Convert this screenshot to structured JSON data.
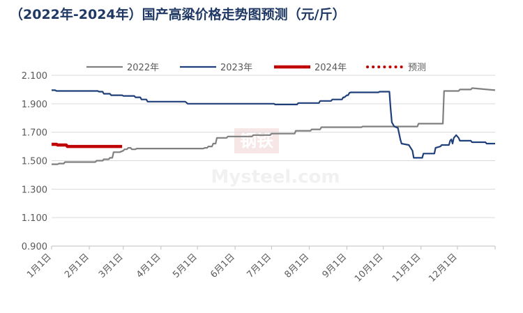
{
  "chart_data": {
    "type": "line",
    "title": "（2022年-2024年）国产高粱价格走势图预测（元/斤）",
    "watermark": {
      "cn": "钢铁",
      "en": "Mysteel.com"
    },
    "ylim": [
      0.9,
      2.1
    ],
    "yticks": [
      "0.900",
      "1.100",
      "1.300",
      "1.500",
      "1.700",
      "1.900",
      "2.100"
    ],
    "ytick_values": [
      0.9,
      1.1,
      1.3,
      1.5,
      1.7,
      1.9,
      2.1
    ],
    "xticks": [
      "1月1日",
      "2月1日",
      "3月1日",
      "4月1日",
      "5月1日",
      "6月1日",
      "7月1日",
      "8月1日",
      "9月1日",
      "10月1日",
      "11月1日",
      "12月1日"
    ],
    "xtick_days": [
      0,
      31,
      59,
      90,
      120,
      151,
      181,
      212,
      243,
      273,
      304,
      334
    ],
    "xlim": [
      0,
      365
    ],
    "legend": [
      "2022年",
      "2023年",
      "2024年",
      "预测"
    ],
    "series": [
      {
        "name": "2022年",
        "color": "#7f7f7f",
        "width": 2.2,
        "dash": "",
        "x": [
          0,
          5,
          6,
          10,
          11,
          36,
          37,
          42,
          43,
          47,
          48,
          50,
          51,
          56,
          59,
          60,
          62,
          63,
          65,
          66,
          69,
          70,
          125,
          126,
          128,
          129,
          132,
          133,
          135,
          136,
          144,
          145,
          165,
          166,
          180,
          181,
          200,
          201,
          213,
          214,
          221,
          222,
          255,
          256,
          301,
          302,
          322,
          323,
          335,
          336,
          345,
          346,
          365
        ],
        "y": [
          1.475,
          1.475,
          1.48,
          1.48,
          1.49,
          1.49,
          1.5,
          1.5,
          1.51,
          1.51,
          1.52,
          1.52,
          1.56,
          1.56,
          1.57,
          1.58,
          1.58,
          1.59,
          1.59,
          1.58,
          1.58,
          1.585,
          1.585,
          1.59,
          1.59,
          1.6,
          1.6,
          1.62,
          1.62,
          1.66,
          1.66,
          1.67,
          1.67,
          1.68,
          1.68,
          1.69,
          1.69,
          1.71,
          1.71,
          1.72,
          1.72,
          1.735,
          1.735,
          1.74,
          1.74,
          1.76,
          1.76,
          1.99,
          1.99,
          2.0,
          2.0,
          2.01,
          1.995
        ]
      },
      {
        "name": "2023年",
        "color": "#1f3f7a",
        "width": 2.2,
        "dash": "",
        "x": [
          0,
          3,
          4,
          38,
          39,
          42,
          43,
          48,
          49,
          58,
          59,
          68,
          69,
          73,
          74,
          78,
          79,
          110,
          112,
          183,
          184,
          202,
          203,
          220,
          221,
          230,
          231,
          239,
          240,
          241,
          243,
          244,
          245,
          246,
          269,
          270,
          278,
          279,
          280,
          282,
          285,
          287,
          288,
          294,
          297,
          298,
          305,
          306,
          315,
          316,
          320,
          321,
          327,
          328,
          329,
          330,
          331,
          333,
          335,
          336,
          345,
          346,
          357,
          358,
          365
        ],
        "y": [
          1.995,
          1.995,
          1.99,
          1.99,
          1.985,
          1.985,
          1.97,
          1.97,
          1.96,
          1.96,
          1.955,
          1.955,
          1.945,
          1.945,
          1.93,
          1.93,
          1.915,
          1.915,
          1.9,
          1.9,
          1.895,
          1.895,
          1.905,
          1.905,
          1.92,
          1.92,
          1.93,
          1.93,
          1.945,
          1.945,
          1.96,
          1.96,
          1.975,
          1.98,
          1.98,
          1.985,
          1.985,
          1.87,
          1.77,
          1.74,
          1.73,
          1.65,
          1.62,
          1.61,
          1.57,
          1.52,
          1.52,
          1.55,
          1.55,
          1.59,
          1.6,
          1.61,
          1.61,
          1.64,
          1.65,
          1.62,
          1.66,
          1.68,
          1.66,
          1.64,
          1.64,
          1.63,
          1.63,
          1.62,
          1.62
        ]
      },
      {
        "name": "2024年",
        "color": "#c00000",
        "width": 4.5,
        "dash": "",
        "x": [
          0,
          4,
          5,
          12,
          13,
          58
        ],
        "y": [
          1.615,
          1.615,
          1.61,
          1.61,
          1.6,
          1.6
        ]
      },
      {
        "name": "预测",
        "color": "#c00000",
        "width": 3,
        "dash": "dotted",
        "x": [],
        "y": []
      }
    ]
  }
}
